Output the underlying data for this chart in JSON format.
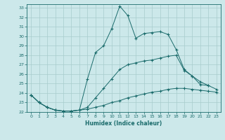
{
  "xlabel": "Humidex (Indice chaleur)",
  "bg_color": "#cce8ea",
  "grid_color": "#a8cccc",
  "line_color": "#1a6b6b",
  "xlim": [
    -0.5,
    23.5
  ],
  "ylim": [
    22,
    33.4
  ],
  "yticks": [
    22,
    23,
    24,
    25,
    26,
    27,
    28,
    29,
    30,
    31,
    32,
    33
  ],
  "xticks": [
    0,
    1,
    2,
    3,
    4,
    5,
    6,
    7,
    8,
    9,
    10,
    11,
    12,
    13,
    14,
    15,
    16,
    17,
    18,
    19,
    20,
    21,
    22,
    23
  ],
  "series": [
    {
      "x": [
        0,
        1,
        2,
        3,
        4,
        5,
        6,
        7,
        8,
        9,
        10,
        11,
        12,
        13,
        14,
        15,
        16,
        17,
        18,
        19,
        20,
        21,
        22
      ],
      "y": [
        23.8,
        23.0,
        22.5,
        22.2,
        22.1,
        22.1,
        22.2,
        25.5,
        28.3,
        29.0,
        30.8,
        33.2,
        32.2,
        29.8,
        30.3,
        30.4,
        30.5,
        30.2,
        28.6,
        26.5,
        25.8,
        24.9,
        24.8
      ]
    },
    {
      "x": [
        0,
        1,
        2,
        3,
        4,
        5,
        6,
        7,
        8,
        9,
        10,
        11,
        12,
        13,
        14,
        15,
        16,
        17,
        18,
        19,
        20,
        21,
        22,
        23
      ],
      "y": [
        23.8,
        23.0,
        22.5,
        22.2,
        22.1,
        22.1,
        22.2,
        22.5,
        23.5,
        24.5,
        25.5,
        26.5,
        27.0,
        27.2,
        27.4,
        27.5,
        27.7,
        27.9,
        28.0,
        26.4,
        25.8,
        25.2,
        24.8,
        24.4
      ]
    },
    {
      "x": [
        0,
        1,
        2,
        3,
        4,
        5,
        6,
        7,
        8,
        9,
        10,
        11,
        12,
        13,
        14,
        15,
        16,
        17,
        18,
        19,
        20,
        21,
        22,
        23
      ],
      "y": [
        23.8,
        23.0,
        22.5,
        22.2,
        22.1,
        22.1,
        22.2,
        22.3,
        22.5,
        22.7,
        23.0,
        23.2,
        23.5,
        23.7,
        23.9,
        24.1,
        24.2,
        24.4,
        24.5,
        24.5,
        24.4,
        24.3,
        24.2,
        24.1
      ]
    }
  ]
}
